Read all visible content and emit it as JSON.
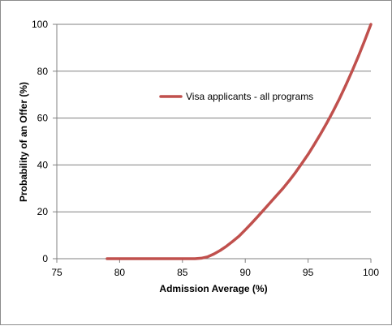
{
  "chart_data": {
    "type": "line",
    "title": "",
    "xlabel": "Admission Average (%)",
    "ylabel": "Probability of an Offer (%)",
    "xlim": [
      75,
      100
    ],
    "ylim": [
      0,
      100
    ],
    "x_ticks": [
      "75",
      "80",
      "85",
      "90",
      "95",
      "100"
    ],
    "y_ticks": [
      "0",
      "20",
      "40",
      "60",
      "80",
      "100"
    ],
    "grid": "horizontal",
    "legend_position": "inside top-center",
    "series": [
      {
        "name": "Visa applicants - all programs",
        "color": "#c0504d",
        "x": [
          79,
          80,
          81,
          82,
          83,
          84,
          85,
          86,
          86.5,
          87,
          87.5,
          88,
          88.5,
          89,
          89.5,
          90,
          90.5,
          91,
          91.5,
          92,
          92.5,
          93,
          93.5,
          94,
          94.5,
          95,
          95.5,
          96,
          96.5,
          97,
          97.5,
          98,
          98.5,
          99,
          99.5,
          100
        ],
        "y": [
          0,
          0,
          0,
          0,
          0,
          0,
          0,
          0,
          0.2,
          0.8,
          2,
          3.5,
          5.3,
          7.4,
          9.6,
          12.3,
          15.1,
          18,
          21,
          24,
          27,
          30,
          33.3,
          36.8,
          40.6,
          44.5,
          48.8,
          53.3,
          58,
          63,
          68.3,
          74,
          80,
          86.3,
          93,
          100
        ]
      }
    ]
  }
}
